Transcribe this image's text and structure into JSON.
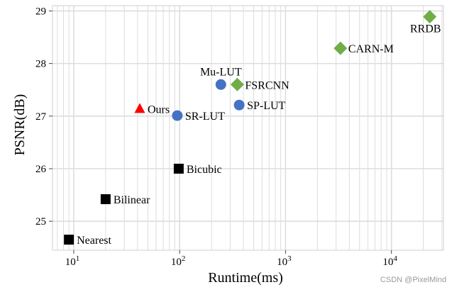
{
  "chart_data": {
    "type": "scatter",
    "title": "",
    "xlabel": "Runtime(ms)",
    "ylabel": "PSNR(dB)",
    "x_scale": "log",
    "xlim": [
      6.3,
      31000
    ],
    "ylim": [
      24.45,
      29.1
    ],
    "x_ticks": [
      {
        "value": 10,
        "base": "10",
        "exp": "1"
      },
      {
        "value": 100,
        "base": "10",
        "exp": "2"
      },
      {
        "value": 1000,
        "base": "10",
        "exp": "3"
      },
      {
        "value": 10000,
        "base": "10",
        "exp": "4"
      }
    ],
    "y_ticks": [
      25,
      26,
      27,
      28,
      29
    ],
    "grid": true,
    "points": [
      {
        "label": "Nearest",
        "x": 9,
        "y": 24.65,
        "marker": "square",
        "color": "#000000",
        "label_pos": "right"
      },
      {
        "label": "Bilinear",
        "x": 20,
        "y": 25.42,
        "marker": "square",
        "color": "#000000",
        "label_pos": "right"
      },
      {
        "label": "Bicubic",
        "x": 98,
        "y": 26.0,
        "marker": "square",
        "color": "#000000",
        "label_pos": "right"
      },
      {
        "label": "Ours",
        "x": 42,
        "y": 27.14,
        "marker": "triangle",
        "color": "#ff0000",
        "label_pos": "right"
      },
      {
        "label": "SR-LUT",
        "x": 95,
        "y": 27.01,
        "marker": "circle",
        "color": "#4472c4",
        "label_pos": "right"
      },
      {
        "label": "Mu-LUT",
        "x": 245,
        "y": 27.6,
        "marker": "circle",
        "color": "#4472c4",
        "label_pos": "above"
      },
      {
        "label": "SP-LUT",
        "x": 365,
        "y": 27.21,
        "marker": "circle",
        "color": "#4472c4",
        "label_pos": "right"
      },
      {
        "label": "FSRCNN",
        "x": 350,
        "y": 27.6,
        "marker": "diamond",
        "color": "#70ad47",
        "label_pos": "right"
      },
      {
        "label": "CARN-M",
        "x": 3300,
        "y": 28.29,
        "marker": "diamond",
        "color": "#70ad47",
        "label_pos": "right"
      },
      {
        "label": "RRDB",
        "x": 23000,
        "y": 28.89,
        "marker": "diamond",
        "color": "#70ad47",
        "label_pos": "below"
      }
    ]
  },
  "watermark": "CSDN @PixelMind"
}
